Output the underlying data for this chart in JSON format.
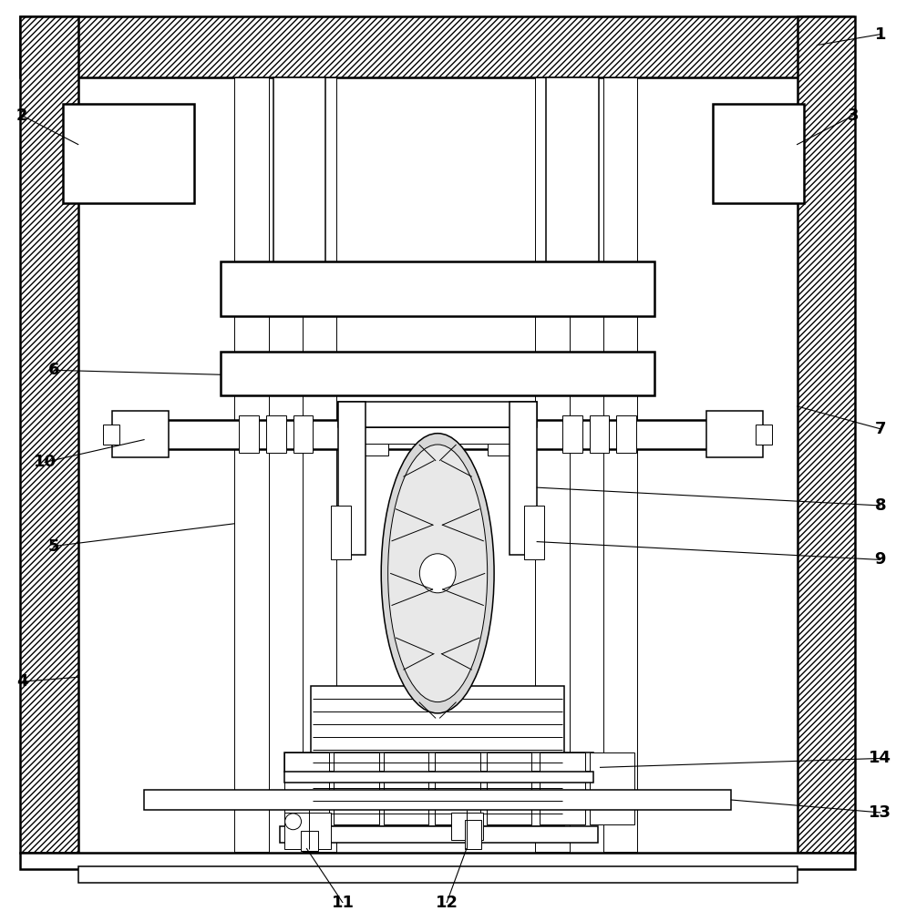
{
  "bg_color": "#ffffff",
  "line_color": "#000000",
  "figsize": [
    9.95,
    10.0
  ],
  "dpi": 100,
  "lw_main": 1.8,
  "lw_med": 1.1,
  "lw_thin": 0.7,
  "label_fontsize": 13
}
